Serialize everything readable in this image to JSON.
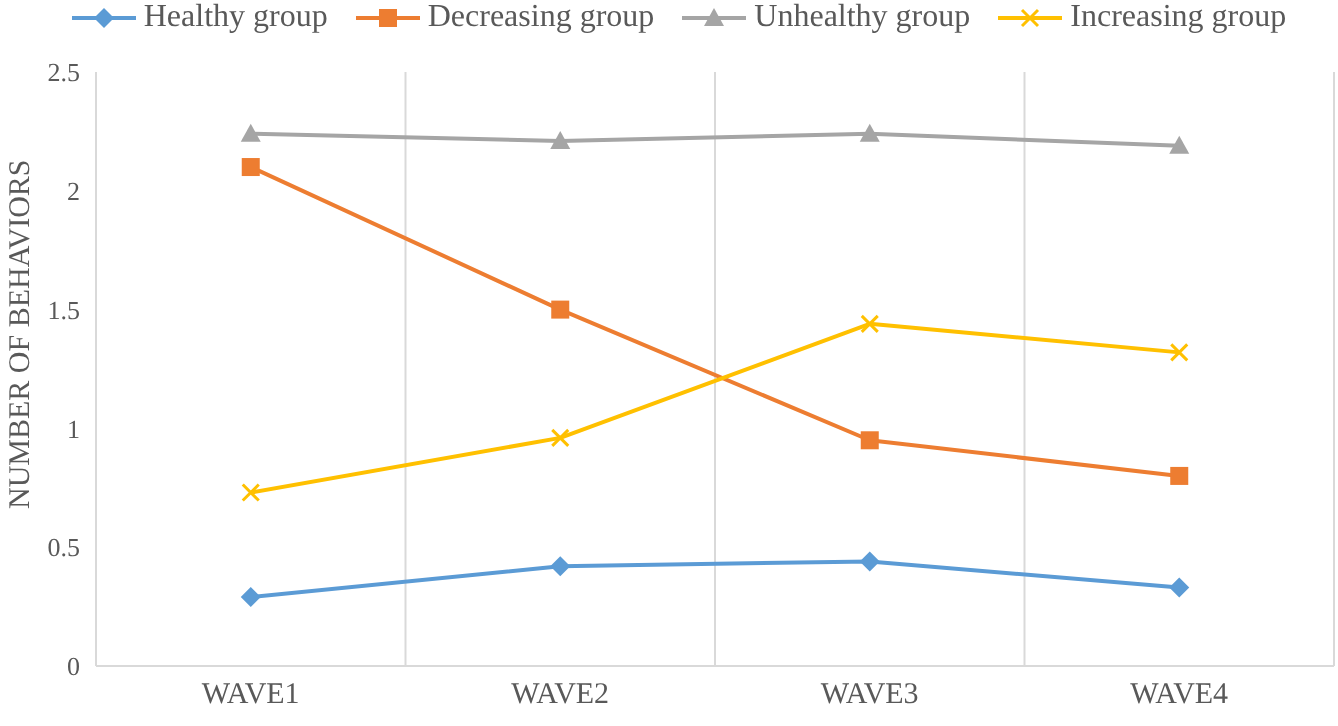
{
  "chart_data": {
    "type": "line",
    "ylabel": "NUMBER OF BEHAVIORS",
    "categories": [
      "WAVE1",
      "WAVE2",
      "WAVE3",
      "WAVE4"
    ],
    "series": [
      {
        "name": "Healthy group",
        "color": "#5b9bd5",
        "marker": "diamond",
        "values": [
          0.29,
          0.42,
          0.44,
          0.33
        ]
      },
      {
        "name": "Decreasing group",
        "color": "#ed7d31",
        "marker": "square",
        "values": [
          2.1,
          1.5,
          0.95,
          0.8
        ]
      },
      {
        "name": "Unhealthy group",
        "color": "#a5a5a5",
        "marker": "triangle",
        "values": [
          2.24,
          2.21,
          2.24,
          2.19
        ]
      },
      {
        "name": "Increasing group",
        "color": "#ffc000",
        "marker": "cross",
        "values": [
          0.73,
          0.96,
          1.44,
          1.32
        ]
      }
    ],
    "ylim": [
      0,
      2.5
    ],
    "yticks": [
      0,
      0.5,
      1,
      1.5,
      2,
      2.5
    ],
    "grid": "x",
    "legend": "top"
  }
}
